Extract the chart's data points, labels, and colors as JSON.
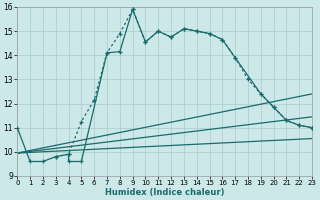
{
  "xlabel": "Humidex (Indice chaleur)",
  "background_color": "#cce8e8",
  "grid_color": "#aacccc",
  "line_color": "#1a6b6b",
  "x_min": 0,
  "x_max": 23,
  "y_min": 9,
  "y_max": 16,
  "solid_x": [
    0,
    1,
    2,
    3,
    4,
    4,
    5,
    7,
    8,
    9,
    10,
    11,
    12,
    13,
    14,
    15,
    16,
    17,
    19,
    20,
    21,
    22,
    23
  ],
  "solid_y": [
    11.0,
    9.6,
    9.6,
    9.8,
    9.9,
    9.6,
    9.6,
    14.1,
    14.15,
    15.9,
    14.55,
    15.0,
    14.75,
    15.1,
    15.0,
    14.9,
    14.65,
    13.9,
    12.4,
    11.85,
    11.3,
    11.1,
    11.0
  ],
  "dotted_x": [
    3,
    4,
    5,
    6,
    7,
    8,
    9,
    10,
    11,
    12,
    13,
    14,
    15,
    16,
    17,
    18,
    19,
    20,
    21,
    22,
    23
  ],
  "dotted_y": [
    9.8,
    9.9,
    11.25,
    12.15,
    14.1,
    14.9,
    15.9,
    14.55,
    15.0,
    14.75,
    15.1,
    15.0,
    14.9,
    14.65,
    13.9,
    13.0,
    12.4,
    11.85,
    11.3,
    11.1,
    11.0
  ],
  "line1_x": [
    0,
    23
  ],
  "line1_y": [
    9.95,
    10.55
  ],
  "line2_x": [
    0,
    23
  ],
  "line2_y": [
    9.95,
    12.4
  ],
  "line3_x": [
    0,
    23
  ],
  "line3_y": [
    9.95,
    11.45
  ]
}
